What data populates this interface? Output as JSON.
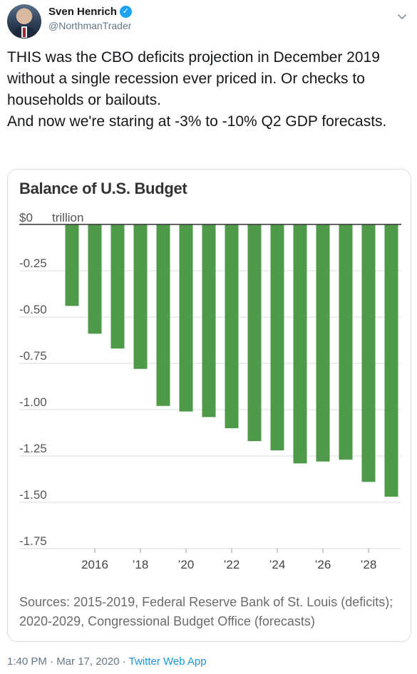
{
  "tweet": {
    "author_name": "Sven Henrich",
    "author_handle": "@NorthmanTrader",
    "text_lines": [
      "THIS was the CBO deficits projection in December 2019 without a single recession ever priced in. Or checks to households or bailouts.",
      "And now we're staring at -3% to -10% Q2 GDP forecasts."
    ],
    "timestamp": "1:40 PM · Mar 17, 2020",
    "separator": " · ",
    "source_app": "Twitter Web App"
  },
  "chart_data": {
    "type": "bar",
    "title": "Balance of U.S. Budget",
    "unit_label": "trillion",
    "categories": [
      2015,
      2016,
      2017,
      2018,
      2019,
      2020,
      2021,
      2022,
      2023,
      2024,
      2025,
      2026,
      2027,
      2028,
      2029
    ],
    "values": [
      -0.44,
      -0.59,
      -0.67,
      -0.78,
      -0.98,
      -1.01,
      -1.04,
      -1.1,
      -1.17,
      -1.22,
      -1.29,
      -1.28,
      -1.27,
      -1.39,
      -1.47
    ],
    "x_tick_labels": [
      {
        "category": 2016,
        "label": "2016"
      },
      {
        "category": 2018,
        "label": "’18"
      },
      {
        "category": 2020,
        "label": "’20"
      },
      {
        "category": 2022,
        "label": "’22"
      },
      {
        "category": 2024,
        "label": "’24"
      },
      {
        "category": 2026,
        "label": "’26"
      },
      {
        "category": 2028,
        "label": "’28"
      }
    ],
    "y_ticks": [
      {
        "value": 0,
        "label": "$0"
      },
      {
        "value": -0.25,
        "label": "-0.25"
      },
      {
        "value": -0.5,
        "label": "-0.50"
      },
      {
        "value": -0.75,
        "label": "-0.75"
      },
      {
        "value": -1.0,
        "label": "-1.00"
      },
      {
        "value": -1.25,
        "label": "-1.25"
      },
      {
        "value": -1.5,
        "label": "-1.50"
      },
      {
        "value": -1.75,
        "label": "-1.75"
      }
    ],
    "ylim": [
      -1.75,
      0
    ],
    "grid": true,
    "bar_color": "#4f9a4a",
    "sources": "Sources: 2015-2019, Federal Reserve Bank of St. Louis (deficits); 2020-2029, Congressional Budget Office (forecasts)"
  }
}
